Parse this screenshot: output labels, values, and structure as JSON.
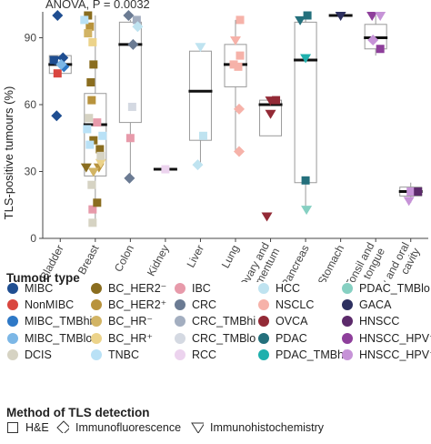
{
  "chart_data": {
    "type": "box-strip",
    "annotation": "ANOVA, P = 0.0032",
    "ylabel": "TLS-positive tumours (%)",
    "ylim": [
      0,
      100
    ],
    "yticks": [
      0,
      30,
      60,
      90
    ],
    "categories": [
      "Bladder",
      "Breast",
      "Colon",
      "Kidney",
      "Liver",
      "Lung",
      "Ovary and omentum",
      "Pancreas",
      "Stomach",
      "Tonsil and tongue",
      "Larynx and oral cavity"
    ],
    "boxes": [
      {
        "category": "Bladder",
        "q1": 74,
        "median": 78,
        "q3": 82,
        "min": 74,
        "max": 82
      },
      {
        "category": "Breast",
        "q1": 28,
        "median": 51,
        "q3": 65,
        "min": 7,
        "max": 100
      },
      {
        "category": "Colon",
        "q1": 52,
        "median": 87,
        "q3": 97,
        "min": 27,
        "max": 98
      },
      {
        "category": "Kidney",
        "q1": 31,
        "median": 31,
        "q3": 31,
        "min": 31,
        "max": 31
      },
      {
        "category": "Liver",
        "q1": 44,
        "median": 66,
        "q3": 84,
        "min": 33,
        "max": 86
      },
      {
        "category": "Lung",
        "q1": 68,
        "median": 78,
        "q3": 87,
        "min": 39,
        "max": 98
      },
      {
        "category": "Ovary and omentum",
        "q1": 46,
        "median": 60,
        "q3": 62,
        "min": 46,
        "max": 62
      },
      {
        "category": "Pancreas",
        "q1": 25,
        "median": 80,
        "q3": 97,
        "min": 12,
        "max": 100
      },
      {
        "category": "Stomach",
        "q1": 100,
        "median": 100,
        "q3": 100,
        "min": 100,
        "max": 100
      },
      {
        "category": "Tonsil and tongue",
        "q1": 85,
        "median": 90,
        "q3": 96,
        "min": 82,
        "max": 100
      },
      {
        "category": "Larynx and oral cavity",
        "q1": 19,
        "median": 21,
        "q3": 23,
        "min": 16,
        "max": 25
      }
    ],
    "points": [
      {
        "category": "Bladder",
        "type": "MIBC",
        "method": "H&E",
        "value": 80,
        "dx": -7
      },
      {
        "category": "Bladder",
        "type": "MIBC",
        "method": "Immunofluorescence",
        "value": 100,
        "dx": -3
      },
      {
        "category": "Bladder",
        "type": "MIBC",
        "method": "Immunofluorescence",
        "value": 81,
        "dx": 3
      },
      {
        "category": "Bladder",
        "type": "MIBC",
        "method": "Immunofluorescence",
        "value": 55,
        "dx": -4
      },
      {
        "category": "Bladder",
        "type": "MIBC",
        "method": "Immunohistochemistry",
        "value": 80,
        "dx": -6
      },
      {
        "category": "Bladder",
        "type": "NonMIBC",
        "method": "H&E",
        "value": 74,
        "dx": -3
      },
      {
        "category": "Bladder",
        "type": "MIBC_TMBhi",
        "method": "Immunofluorescence",
        "value": 77,
        "dx": 4
      },
      {
        "category": "Bladder",
        "type": "MIBC_TMBlo",
        "method": "Immunofluorescence",
        "value": 78,
        "dx": 1
      },
      {
        "category": "Breast",
        "type": "BC_HER2-",
        "method": "H&E",
        "value": 100,
        "dx": -8
      },
      {
        "category": "Breast",
        "type": "BC_HER2-",
        "method": "H&E",
        "value": 78,
        "dx": -2
      },
      {
        "category": "Breast",
        "type": "BC_HER2-",
        "method": "H&E",
        "value": 70,
        "dx": -5
      },
      {
        "category": "Breast",
        "type": "BC_HER2-",
        "method": "H&E",
        "value": 44,
        "dx": -2
      },
      {
        "category": "Breast",
        "type": "BC_HER2-",
        "method": "H&E",
        "value": 40,
        "dx": 5
      },
      {
        "category": "Breast",
        "type": "BC_HER2-",
        "method": "Immunohistochemistry",
        "value": 32,
        "dx": -10
      },
      {
        "category": "Breast",
        "type": "BC_HER2+",
        "method": "H&E",
        "value": 95,
        "dx": -6
      },
      {
        "category": "Breast",
        "type": "BC_HER2+",
        "method": "H&E",
        "value": 62,
        "dx": -4
      },
      {
        "category": "Breast",
        "type": "BC_HER2+",
        "method": "Immunohistochemistry",
        "value": 32,
        "dx": 4
      },
      {
        "category": "Breast",
        "type": "BC_HR-",
        "method": "H&E",
        "value": 92,
        "dx": -8
      },
      {
        "category": "Breast",
        "type": "BC_HR-",
        "method": "Immunohistochemistry",
        "value": 30,
        "dx": -2
      },
      {
        "category": "Breast",
        "type": "BC_HR+",
        "method": "H&E",
        "value": 88,
        "dx": -3
      },
      {
        "category": "Breast",
        "type": "BC_HR+",
        "method": "Immunohistochemistry",
        "value": 34,
        "dx": 6
      },
      {
        "category": "Breast",
        "type": "IBC",
        "method": "H&E",
        "value": 52,
        "dx": 2
      },
      {
        "category": "Breast",
        "type": "IBC",
        "method": "H&E",
        "value": 13,
        "dx": -3
      },
      {
        "category": "Breast",
        "type": "TNBC",
        "method": "H&E",
        "value": 49,
        "dx": -9
      },
      {
        "category": "Breast",
        "type": "TNBC",
        "method": "H&E",
        "value": 42,
        "dx": -6
      },
      {
        "category": "Breast",
        "type": "TNBC",
        "method": "H&E",
        "value": 46,
        "dx": 8
      },
      {
        "category": "Breast",
        "type": "TNBC",
        "method": "H&E",
        "value": 98,
        "dx": -12
      },
      {
        "category": "Breast",
        "type": "DCIS",
        "method": "H&E",
        "value": 54,
        "dx": -7
      },
      {
        "category": "Breast",
        "type": "DCIS",
        "method": "H&E",
        "value": 37,
        "dx": 6
      },
      {
        "category": "Breast",
        "type": "DCIS",
        "method": "H&E",
        "value": 24,
        "dx": -4
      },
      {
        "category": "Breast",
        "type": "DCIS",
        "method": "H&E",
        "value": 7,
        "dx": -3
      },
      {
        "category": "Breast",
        "type": "BC_HER2-",
        "method": "H&E",
        "value": 16,
        "dx": 2
      },
      {
        "category": "Colon",
        "type": "CRC",
        "method": "Immunofluorescence",
        "value": 100,
        "dx": -2
      },
      {
        "category": "Colon",
        "type": "CRC",
        "method": "Immunofluorescence",
        "value": 87,
        "dx": 3
      },
      {
        "category": "Colon",
        "type": "CRC",
        "method": "Immunofluorescence",
        "value": 27,
        "dx": -1
      },
      {
        "category": "Colon",
        "type": "CRC_TMBhi",
        "method": "H&E",
        "value": 98,
        "dx": 7
      },
      {
        "category": "Colon",
        "type": "CRC_TMBlo",
        "method": "H&E",
        "value": 59,
        "dx": 2
      },
      {
        "category": "Colon",
        "type": "IBC",
        "method": "H&E",
        "value": 45,
        "dx": 0
      },
      {
        "category": "Colon",
        "type": "HCC",
        "method": "Immunofluorescence",
        "value": 95,
        "dx": 8
      },
      {
        "category": "Kidney",
        "type": "RCC",
        "method": "H&E",
        "value": 31,
        "dx": 0
      },
      {
        "category": "Liver",
        "type": "HCC",
        "method": "Immunohistochemistry",
        "value": 86,
        "dx": 0
      },
      {
        "category": "Liver",
        "type": "HCC",
        "method": "H&E",
        "value": 46,
        "dx": 3
      },
      {
        "category": "Liver",
        "type": "HCC",
        "method": "Immunofluorescence",
        "value": 33,
        "dx": -3
      },
      {
        "category": "Lung",
        "type": "NSCLC",
        "method": "H&E",
        "value": 98,
        "dx": 5
      },
      {
        "category": "Lung",
        "type": "NSCLC",
        "method": "Immunohistochemistry",
        "value": 89,
        "dx": 0
      },
      {
        "category": "Lung",
        "type": "NSCLC",
        "method": "H&E",
        "value": 82,
        "dx": 5
      },
      {
        "category": "Lung",
        "type": "NSCLC",
        "method": "H&E",
        "value": 78,
        "dx": -2
      },
      {
        "category": "Lung",
        "type": "NSCLC",
        "method": "H&E",
        "value": 77,
        "dx": 3
      },
      {
        "category": "Lung",
        "type": "NSCLC",
        "method": "Immunofluorescence",
        "value": 58,
        "dx": 4
      },
      {
        "category": "Lung",
        "type": "NSCLC",
        "method": "Immunofluorescence",
        "value": 39,
        "dx": 4
      },
      {
        "category": "Ovary and omentum",
        "type": "OVCA",
        "method": "Immunohistochemistry",
        "value": 62,
        "dx": 0
      },
      {
        "category": "Ovary and omentum",
        "type": "OVCA",
        "method": "H&E",
        "value": 62,
        "dx": 6
      },
      {
        "category": "Ovary and omentum",
        "type": "OVCA",
        "method": "Immunohistochemistry",
        "value": 56,
        "dx": 0
      },
      {
        "category": "Ovary and omentum",
        "type": "OVCA",
        "method": "Immunohistochemistry",
        "value": 10,
        "dx": -4
      },
      {
        "category": "Pancreas",
        "type": "PDAC",
        "method": "Immunohistochemistry",
        "value": 98,
        "dx": -6
      },
      {
        "category": "Pancreas",
        "type": "PDAC",
        "method": "H&E",
        "value": 100,
        "dx": 2
      },
      {
        "category": "Pancreas",
        "type": "PDAC_TMBhi",
        "method": "Immunohistochemistry",
        "value": 81,
        "dx": 0
      },
      {
        "category": "Pancreas",
        "type": "PDAC",
        "method": "H&E",
        "value": 26,
        "dx": 0
      },
      {
        "category": "Pancreas",
        "type": "PDAC_TMBlo",
        "method": "Immunohistochemistry",
        "value": 13,
        "dx": 1
      },
      {
        "category": "Stomach",
        "type": "GACA",
        "method": "Immunohistochemistry",
        "value": 100,
        "dx": 0
      },
      {
        "category": "Tonsil and tongue",
        "type": "HNSCC_HPV-",
        "method": "Immunohistochemistry",
        "value": 100,
        "dx": -4
      },
      {
        "category": "Tonsil and tongue",
        "type": "HNSCC_HPV+",
        "method": "Immunohistochemistry",
        "value": 100,
        "dx": 5
      },
      {
        "category": "Tonsil and tongue",
        "type": "HNSCC_HPV+",
        "method": "Immunofluorescence",
        "value": 89,
        "dx": -3
      },
      {
        "category": "Tonsil and tongue",
        "type": "HNSCC_HPV-",
        "method": "H&E",
        "value": 85,
        "dx": 5
      },
      {
        "category": "Larynx and oral cavity",
        "type": "HNSCC_HPV+",
        "method": "H&E",
        "value": 21,
        "dx": 0
      },
      {
        "category": "Larynx and oral cavity",
        "type": "HNSCC",
        "method": "H&E",
        "value": 21,
        "dx": 8
      },
      {
        "category": "Larynx and oral cavity",
        "type": "HNSCC_HPV+",
        "method": "Immunohistochemistry",
        "value": 17,
        "dx": -2
      }
    ]
  },
  "legend": {
    "title": "Tumour type",
    "items": [
      {
        "label": "MIBC",
        "color": "#1f4e91"
      },
      {
        "label": "BC_HER2⁻",
        "color": "#8a6d1f"
      },
      {
        "label": "IBC",
        "color": "#e79aaa"
      },
      {
        "label": "HCC",
        "color": "#bfe3f0"
      },
      {
        "label": "PDAC_TMBlo",
        "color": "#86d0c2"
      },
      {
        "label": "NonMIBC",
        "color": "#d9463f"
      },
      {
        "label": "BC_HER2⁺",
        "color": "#b8933d"
      },
      {
        "label": "CRC",
        "color": "#6b7b93"
      },
      {
        "label": "NSCLC",
        "color": "#f6b2a9"
      },
      {
        "label": "GACA",
        "color": "#2d3060"
      },
      {
        "label": "MIBC_TMBhi",
        "color": "#2e78c6"
      },
      {
        "label": "BC_HR⁻",
        "color": "#d2b464"
      },
      {
        "label": "CRC_TMBhi",
        "color": "#a3aec0"
      },
      {
        "label": "OVCA",
        "color": "#932a36"
      },
      {
        "label": "HNSCC",
        "color": "#5c2a6b"
      },
      {
        "label": "MIBC_TMBlo",
        "color": "#7cb7e6"
      },
      {
        "label": "BC_HR⁺",
        "color": "#ecd38a"
      },
      {
        "label": "CRC_TMBlo",
        "color": "#d4d9e2"
      },
      {
        "label": "PDAC",
        "color": "#24707c"
      },
      {
        "label": "HNSCC_HPV⁻",
        "color": "#8e3f9b"
      },
      {
        "label": "DCIS",
        "color": "#d6d3c3"
      },
      {
        "label": "TNBC",
        "color": "#b9e1f6"
      },
      {
        "label": "RCC",
        "color": "#ecd3ee"
      },
      {
        "label": "PDAC_TMBhi",
        "color": "#1fb0ad"
      },
      {
        "label": "HNSCC_HPV⁺",
        "color": "#c693d7"
      }
    ]
  },
  "method_legend": {
    "title": "Method of TLS detection",
    "items": [
      {
        "label": "H&E",
        "symbol": "square"
      },
      {
        "label": "Immunofluorescence",
        "symbol": "diamond"
      },
      {
        "label": "Immunohistochemistry",
        "symbol": "triangle"
      }
    ]
  }
}
